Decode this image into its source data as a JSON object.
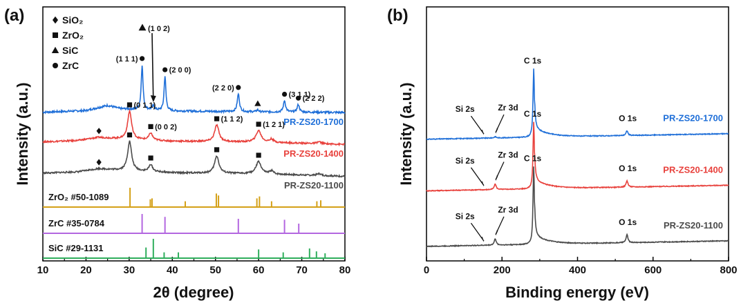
{
  "chart_data": [
    {
      "panel_label": "(a)",
      "type": "line",
      "xlabel": "2θ (degree)",
      "ylabel": "Intensity (a.u.)",
      "xlim": [
        10,
        80
      ],
      "xticks": [
        10,
        20,
        30,
        40,
        50,
        60,
        70,
        80
      ],
      "legend": [
        {
          "symbol": "diamond",
          "label": "SiO₂"
        },
        {
          "symbol": "square",
          "label": "ZrO₂"
        },
        {
          "symbol": "triangle",
          "label": "SiC"
        },
        {
          "symbol": "circle",
          "label": "ZrC"
        }
      ],
      "series": [
        {
          "name": "PR-ZS20-1700",
          "color": "#1f6fd8",
          "offset": 7.3,
          "wavy": 0.15,
          "background": [
            [
              10,
              0.02
            ],
            [
              20,
              0.15
            ],
            [
              25,
              0.55
            ],
            [
              28,
              0.3
            ],
            [
              40,
              0.12
            ],
            [
              60,
              0.05
            ],
            [
              80,
              0.0
            ]
          ],
          "peaks": [
            [
              33.0,
              3.5,
              0.25
            ],
            [
              38.3,
              2.7,
              0.25
            ],
            [
              35.6,
              0.35,
              0.3
            ],
            [
              55.3,
              1.4,
              0.3
            ],
            [
              59.8,
              0.15,
              0.3
            ],
            [
              66.0,
              0.9,
              0.3
            ],
            [
              69.2,
              0.6,
              0.3
            ]
          ],
          "annotations": [
            {
              "x": 33.0,
              "symbol": "circle",
              "text": "(1 1 1)",
              "side": "left"
            },
            {
              "x": 38.3,
              "symbol": "circle",
              "text": "(2 0 0)",
              "side": "right"
            },
            {
              "x": 55.3,
              "symbol": "circle",
              "text": "(2 2 0)",
              "side": "left"
            },
            {
              "x": 59.8,
              "symbol": "triangle",
              "text": "",
              "side": "none"
            },
            {
              "x": 66.0,
              "symbol": "circle",
              "text": "(3 1 1)",
              "side": "right"
            },
            {
              "x": 69.2,
              "symbol": "circle",
              "text": "(2 2 2)",
              "side": "right"
            }
          ],
          "arrow_annotation": {
            "x": 35.6,
            "symbol": "triangle",
            "text": "(1 0 2)"
          }
        },
        {
          "name": "PR-ZS20-1400",
          "color": "#e8413c",
          "offset": 4.8,
          "wavy": 0.12,
          "background": [
            [
              10,
              0.2
            ],
            [
              18,
              0.3
            ],
            [
              23,
              0.55
            ],
            [
              27,
              0.45
            ],
            [
              40,
              0.25
            ],
            [
              60,
              0.18
            ],
            [
              80,
              0.0
            ]
          ],
          "peaks": [
            [
              30.1,
              2.2,
              0.55
            ],
            [
              35.0,
              0.55,
              0.5
            ],
            [
              50.3,
              1.3,
              0.6
            ],
            [
              60.0,
              0.9,
              0.7
            ],
            [
              63.0,
              0.25,
              0.5
            ],
            [
              74.0,
              0.15,
              0.6
            ]
          ],
          "annotations": [
            {
              "x": 23.0,
              "symbol": "diamond",
              "text": "",
              "side": "none"
            },
            {
              "x": 30.1,
              "symbol": "square",
              "text": "(0 1 1)",
              "side": "right"
            },
            {
              "x": 35.0,
              "symbol": "square",
              "text": "(0 0 2)",
              "side": "right"
            },
            {
              "x": 50.3,
              "symbol": "square",
              "text": "(1 1 2)",
              "side": "right"
            },
            {
              "x": 60.0,
              "symbol": "square",
              "text": "(1 2 1)",
              "side": "right"
            }
          ]
        },
        {
          "name": "PR-ZS20-1100",
          "color": "#4a4a4a",
          "offset": 2.3,
          "wavy": 0.12,
          "background": [
            [
              10,
              0.25
            ],
            [
              18,
              0.35
            ],
            [
              23,
              0.6
            ],
            [
              27,
              0.5
            ],
            [
              40,
              0.28
            ],
            [
              60,
              0.2
            ],
            [
              80,
              0.0
            ]
          ],
          "peaks": [
            [
              30.1,
              2.3,
              0.55
            ],
            [
              35.0,
              0.55,
              0.5
            ],
            [
              50.3,
              1.35,
              0.6
            ],
            [
              60.0,
              0.95,
              0.7
            ],
            [
              63.0,
              0.25,
              0.5
            ],
            [
              74.0,
              0.15,
              0.6
            ]
          ],
          "annotations": [
            {
              "x": 23.0,
              "symbol": "diamond",
              "text": "",
              "side": "none"
            },
            {
              "x": 30.1,
              "symbol": "square",
              "text": "",
              "side": "none"
            },
            {
              "x": 35.0,
              "symbol": "square",
              "text": "",
              "side": "none"
            },
            {
              "x": 50.3,
              "symbol": "square",
              "text": "",
              "side": "none"
            },
            {
              "x": 60.0,
              "symbol": "square",
              "text": "",
              "side": "none"
            }
          ]
        }
      ],
      "references": [
        {
          "name": "ZrO₂ #50-1089",
          "color": "#d4a017",
          "lines": [
            [
              30.2,
              1
            ],
            [
              34.9,
              0.4
            ],
            [
              35.3,
              0.45
            ],
            [
              43.0,
              0.3
            ],
            [
              50.2,
              0.7
            ],
            [
              50.7,
              0.6
            ],
            [
              59.6,
              0.45
            ],
            [
              60.2,
              0.55
            ],
            [
              63.0,
              0.3
            ],
            [
              73.5,
              0.3
            ],
            [
              74.4,
              0.35
            ]
          ]
        },
        {
          "name": "ZrC #35-0784",
          "color": "#b366e0",
          "lines": [
            [
              33.0,
              1
            ],
            [
              38.3,
              0.85
            ],
            [
              55.3,
              0.75
            ],
            [
              66.0,
              0.7
            ],
            [
              69.3,
              0.5
            ]
          ]
        },
        {
          "name": "SiC #29-1131",
          "color": "#2fae5c",
          "lines": [
            [
              33.9,
              0.55
            ],
            [
              35.6,
              1
            ],
            [
              38.1,
              0.3
            ],
            [
              41.4,
              0.3
            ],
            [
              60.0,
              0.45
            ],
            [
              65.7,
              0.3
            ],
            [
              71.8,
              0.5
            ],
            [
              73.4,
              0.35
            ],
            [
              75.4,
              0.25
            ]
          ]
        }
      ]
    },
    {
      "panel_label": "(b)",
      "type": "line",
      "xlabel": "Binding energy (eV)",
      "ylabel": "Intensity (a.u.)",
      "xlim": [
        0,
        800
      ],
      "xticks": [
        0,
        200,
        400,
        600,
        800
      ],
      "series": [
        {
          "name": "PR-ZS20-1700",
          "color": "#1f6fd8",
          "base": 7.1,
          "c1s": 4.3,
          "zr": 0.08,
          "o1s": 0.3,
          "labels": {
            "si": "Si 2s",
            "zr": "Zr 3d",
            "c": "C 1s",
            "o": "O 1s"
          }
        },
        {
          "name": "PR-ZS20-1400",
          "color": "#e8413c",
          "base": 3.85,
          "c1s": 4.2,
          "zr": 0.35,
          "o1s": 0.4,
          "labels": {
            "si": "Si 2s",
            "zr": "Zr 3d",
            "c": "C 1s",
            "o": "O 1s"
          }
        },
        {
          "name": "PR-ZS20-1100",
          "color": "#4a4a4a",
          "base": 0.35,
          "c1s": 4.9,
          "zr": 0.4,
          "o1s": 0.5,
          "labels": {
            "si": "Si 2s",
            "zr": "Zr 3d",
            "c": "C 1s",
            "o": "O 1s"
          }
        }
      ]
    }
  ]
}
